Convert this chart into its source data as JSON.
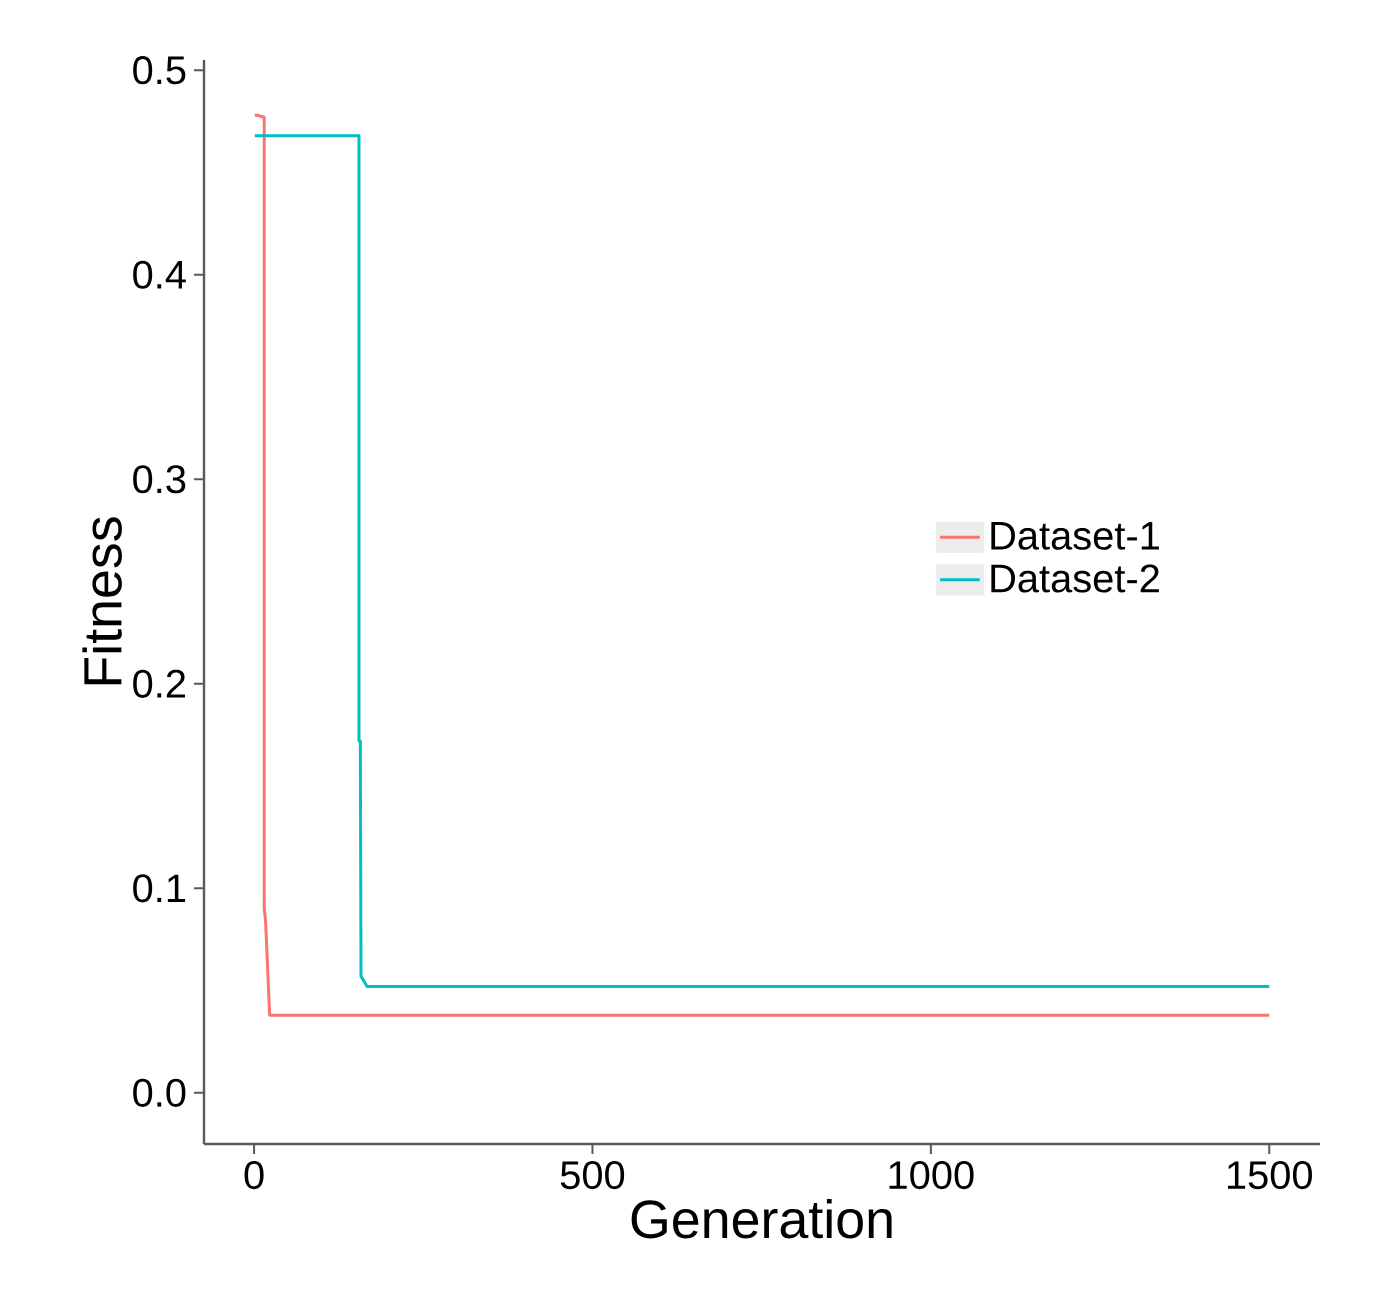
{
  "chart_data": {
    "type": "line",
    "xlabel": "Generation",
    "ylabel": "Fitness",
    "xlim": [
      -74,
      1575
    ],
    "ylim": [
      -0.025,
      0.505
    ],
    "xticks": [
      0,
      500,
      1000,
      1500
    ],
    "yticks": [
      {
        "value": 0,
        "label": "0.0"
      },
      0.1,
      0.2,
      0.3,
      0.4,
      0.5
    ],
    "legend": "right",
    "grid": false,
    "series": [
      {
        "name": "Dataset-1",
        "color": "#f8766d",
        "x": [
          1,
          5,
          15,
          15,
          17,
          23,
          1500
        ],
        "values": [
          0.478,
          0.478,
          0.477,
          0.09,
          0.084,
          0.038,
          0.038
        ]
      },
      {
        "name": "Dataset-2",
        "color": "#00bfc4",
        "x": [
          1,
          155,
          155,
          157,
          158,
          167,
          205,
          1500
        ],
        "values": [
          0.468,
          0.468,
          0.172,
          0.172,
          0.057,
          0.052,
          0.052,
          0.052
        ]
      }
    ]
  }
}
